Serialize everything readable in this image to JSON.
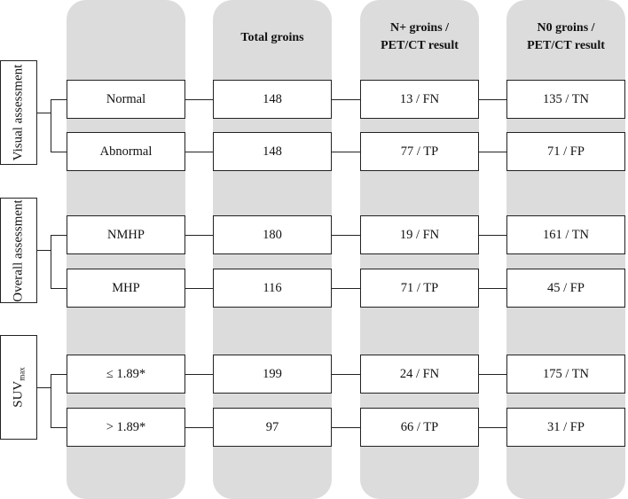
{
  "columns": {
    "total": "Total groins",
    "nplus_line1": "N+ groins /",
    "nplus_line2": "PET/CT result",
    "n0_line1": "N0 groins /",
    "n0_line2": "PET/CT result"
  },
  "groups": [
    {
      "label": "Visual assessment",
      "rows": [
        {
          "category": "Normal",
          "total": "148",
          "nplus": "13 / FN",
          "n0": "135 / TN"
        },
        {
          "category": "Abnormal",
          "total": "148",
          "nplus": "77 / TP",
          "n0": "71 / FP"
        }
      ]
    },
    {
      "label": "Overall assessment",
      "rows": [
        {
          "category": "NMHP",
          "total": "180",
          "nplus": "19 / FN",
          "n0": "161 / TN"
        },
        {
          "category": "MHP",
          "total": "116",
          "nplus": "71 / TP",
          "n0": "45 / FP"
        }
      ]
    },
    {
      "label_main": "SUV",
      "label_sub": "max",
      "rows": [
        {
          "category": "≤ 1.89*",
          "total": "199",
          "nplus": "24 / FN",
          "n0": "175 / TN"
        },
        {
          "category": "> 1.89*",
          "total": "97",
          "nplus": "66 / TP",
          "n0": "31 / FP"
        }
      ]
    }
  ]
}
